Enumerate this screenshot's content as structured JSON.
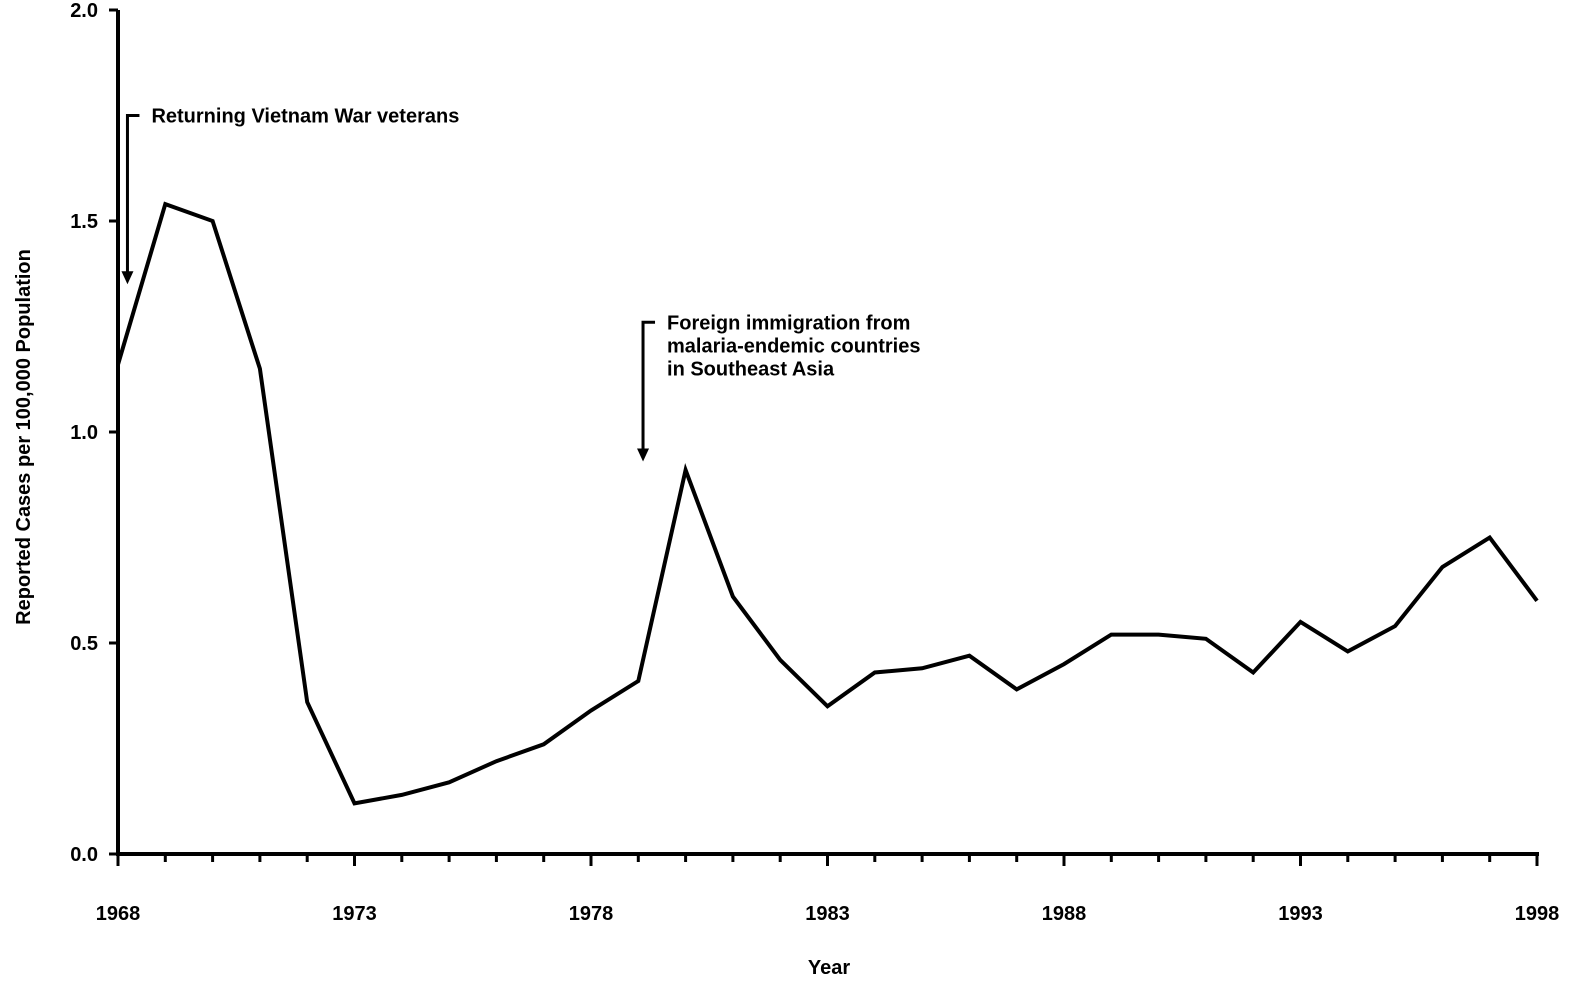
{
  "chart_data": {
    "type": "line",
    "title": "",
    "xlabel": "Year",
    "ylabel": "Reported Cases per 100,000 Population",
    "xlim": [
      1968,
      1998
    ],
    "ylim": [
      0,
      2.0
    ],
    "x_tick_labels": [
      "1968",
      "1973",
      "1978",
      "1983",
      "1988",
      "1993",
      "1998"
    ],
    "y_tick_labels": [
      "0.0",
      "0.5",
      "1.0",
      "1.5",
      "2.0"
    ],
    "grid": false,
    "legend": "none",
    "line_color": "#000000",
    "x": [
      1968,
      1969,
      1970,
      1971,
      1972,
      1973,
      1974,
      1975,
      1976,
      1977,
      1978,
      1979,
      1980,
      1981,
      1982,
      1983,
      1984,
      1985,
      1986,
      1987,
      1988,
      1989,
      1990,
      1991,
      1992,
      1993,
      1994,
      1995,
      1996,
      1997,
      1998
    ],
    "values": [
      1.16,
      1.54,
      1.5,
      1.15,
      0.36,
      0.12,
      0.14,
      0.17,
      0.22,
      0.26,
      0.34,
      0.41,
      0.91,
      0.61,
      0.46,
      0.35,
      0.43,
      0.44,
      0.47,
      0.39,
      0.45,
      0.52,
      0.52,
      0.51,
      0.43,
      0.55,
      0.48,
      0.54,
      0.68,
      0.75,
      0.6
    ],
    "annotations": [
      {
        "lines": [
          "Returning Vietnam War veterans"
        ],
        "x": 1968.2,
        "y_arrow_tip": 1.35,
        "y_arrow_top": 1.75
      },
      {
        "lines": [
          "Foreign immigration from",
          "malaria-endemic countries",
          "in Southeast Asia"
        ],
        "x": 1979.1,
        "y_arrow_tip": 0.93,
        "y_arrow_top": 1.26
      }
    ]
  }
}
